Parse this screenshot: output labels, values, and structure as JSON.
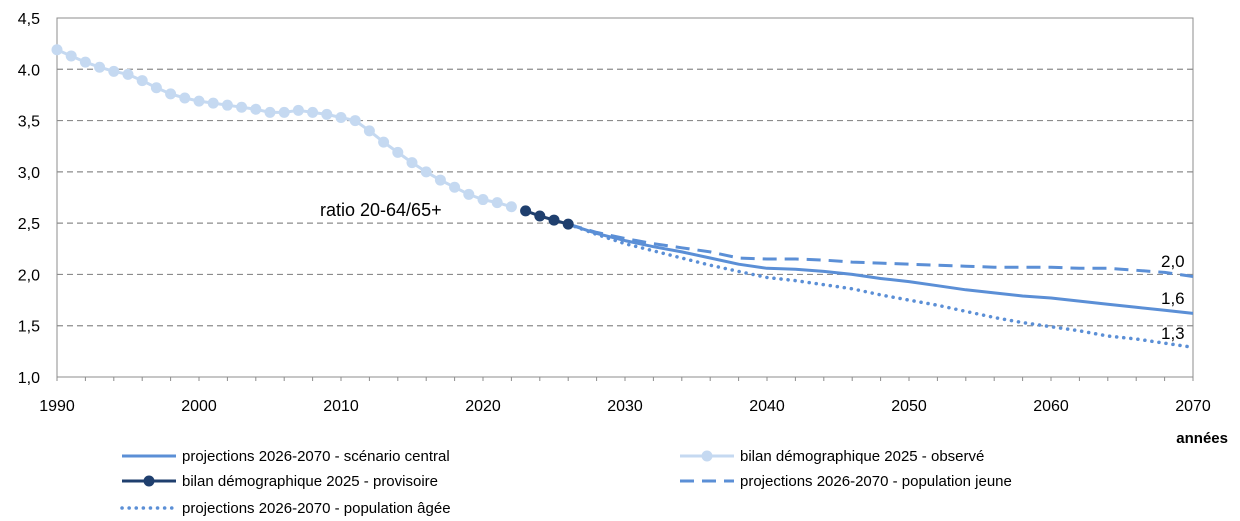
{
  "chart_data": {
    "type": "line",
    "title": "",
    "xlabel": "années",
    "ylabel": "",
    "xlim": [
      1990,
      2070
    ],
    "ylim": [
      1.0,
      4.5
    ],
    "xticks": [
      1990,
      2000,
      2010,
      2020,
      2030,
      2040,
      2050,
      2060,
      2070
    ],
    "xtick_labels": [
      "1990",
      "2000",
      "2010",
      "2020",
      "2030",
      "2040",
      "2050",
      "2060",
      "2070"
    ],
    "yticks": [
      1.0,
      1.5,
      2.0,
      2.5,
      3.0,
      3.5,
      4.0,
      4.5
    ],
    "ytick_labels": [
      "1,0",
      "1,5",
      "2,0",
      "2,5",
      "3,0",
      "3,5",
      "4.0",
      "4,5"
    ],
    "grid": "horizontal dashed",
    "legend_position": "bottom",
    "annotation": "ratio 20-64/65+",
    "end_labels": [
      "2,0",
      "1,6",
      "1,3"
    ],
    "colors": {
      "observed": "#c5d9f1",
      "provisional": "#1f3f6e",
      "central": "#5b8fd6",
      "young": "#5b8fd6",
      "aged": "#5b8fd6"
    },
    "series": [
      {
        "name": "projections 2026-2070 - scénario central",
        "style": "solid",
        "x": [
          2026,
          2028,
          2030,
          2032,
          2034,
          2036,
          2038,
          2040,
          2042,
          2044,
          2046,
          2048,
          2050,
          2052,
          2054,
          2056,
          2058,
          2060,
          2062,
          2064,
          2066,
          2068,
          2070
        ],
        "y": [
          2.49,
          2.4,
          2.33,
          2.27,
          2.22,
          2.16,
          2.1,
          2.06,
          2.05,
          2.03,
          2.0,
          1.96,
          1.93,
          1.89,
          1.85,
          1.82,
          1.79,
          1.77,
          1.74,
          1.71,
          1.68,
          1.65,
          1.62
        ]
      },
      {
        "name": "bilan démographique 2025 - observé",
        "style": "markers",
        "x": [
          1990,
          1991,
          1992,
          1993,
          1994,
          1995,
          1996,
          1997,
          1998,
          1999,
          2000,
          2001,
          2002,
          2003,
          2004,
          2005,
          2006,
          2007,
          2008,
          2009,
          2010,
          2011,
          2012,
          2013,
          2014,
          2015,
          2016,
          2017,
          2018,
          2019,
          2020,
          2021,
          2022
        ],
        "y": [
          4.19,
          4.13,
          4.07,
          4.02,
          3.98,
          3.95,
          3.89,
          3.82,
          3.76,
          3.72,
          3.69,
          3.67,
          3.65,
          3.63,
          3.61,
          3.58,
          3.58,
          3.6,
          3.58,
          3.56,
          3.53,
          3.5,
          3.4,
          3.29,
          3.19,
          3.09,
          3.0,
          2.92,
          2.85,
          2.78,
          2.73,
          2.7,
          2.66
        ]
      },
      {
        "name": "bilan démographique 2025 - provisoire",
        "style": "markers",
        "x": [
          2023,
          2024,
          2025,
          2026
        ],
        "y": [
          2.62,
          2.57,
          2.53,
          2.49
        ]
      },
      {
        "name": "projections 2026-2070 - population jeune",
        "style": "dashed",
        "x": [
          2026,
          2028,
          2030,
          2032,
          2034,
          2036,
          2038,
          2040,
          2042,
          2044,
          2046,
          2048,
          2050,
          2052,
          2054,
          2056,
          2058,
          2060,
          2062,
          2064,
          2066,
          2068,
          2070
        ],
        "y": [
          2.49,
          2.41,
          2.35,
          2.3,
          2.26,
          2.22,
          2.16,
          2.15,
          2.15,
          2.14,
          2.12,
          2.11,
          2.1,
          2.09,
          2.08,
          2.07,
          2.07,
          2.07,
          2.06,
          2.06,
          2.04,
          2.02,
          1.98
        ]
      },
      {
        "name": "projections 2026-2070 - population âgée",
        "style": "dotted",
        "x": [
          2026,
          2028,
          2030,
          2032,
          2034,
          2036,
          2038,
          2040,
          2042,
          2044,
          2046,
          2048,
          2050,
          2052,
          2054,
          2056,
          2058,
          2060,
          2062,
          2064,
          2066,
          2068,
          2070
        ],
        "y": [
          2.49,
          2.39,
          2.3,
          2.23,
          2.16,
          2.09,
          2.03,
          1.97,
          1.94,
          1.9,
          1.86,
          1.8,
          1.75,
          1.7,
          1.64,
          1.58,
          1.53,
          1.49,
          1.45,
          1.4,
          1.37,
          1.33,
          1.29
        ]
      }
    ],
    "legend": [
      {
        "series_index": 0,
        "label": "projections 2026-2070 - scénario central"
      },
      {
        "series_index": 1,
        "label": "bilan démographique 2025 - observé"
      },
      {
        "series_index": 2,
        "label": "bilan démographique 2025 - provisoire"
      },
      {
        "series_index": 3,
        "label": "projections 2026-2070 - population jeune"
      },
      {
        "series_index": 4,
        "label": "projections 2026-2070 - population âgée"
      }
    ]
  }
}
